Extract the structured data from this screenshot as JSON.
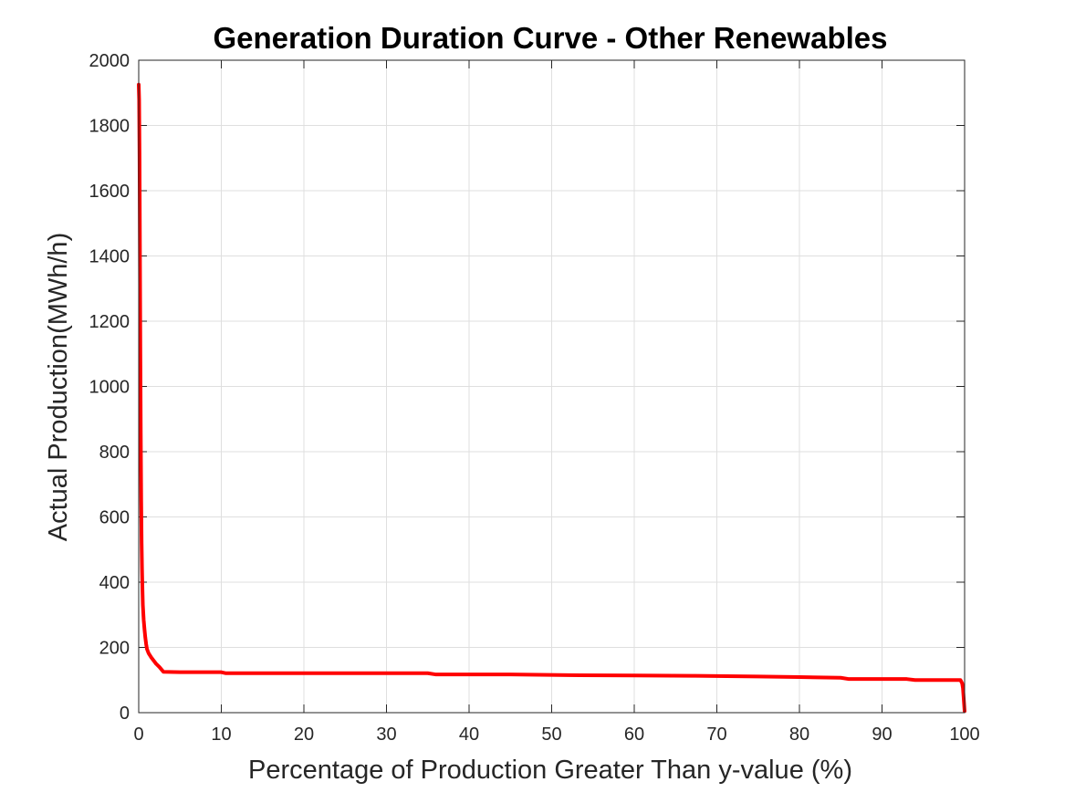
{
  "chart_data": {
    "type": "line",
    "title": "Generation Duration Curve - Other Renewables",
    "xlabel": "Percentage of Production Greater Than y-value (%)",
    "ylabel": "Actual Production(MWh/h)",
    "xlim": [
      0,
      100
    ],
    "ylim": [
      0,
      2000
    ],
    "xticks": [
      0,
      10,
      20,
      30,
      40,
      50,
      60,
      70,
      80,
      90,
      100
    ],
    "yticks": [
      0,
      200,
      400,
      600,
      800,
      1000,
      1200,
      1400,
      1600,
      1800,
      2000
    ],
    "grid": true,
    "series": [
      {
        "color": "#ff0000",
        "x": [
          0,
          0.05,
          0.1,
          0.15,
          0.2,
          0.25,
          0.3,
          0.35,
          0.4,
          0.45,
          0.5,
          0.6,
          0.7,
          0.8,
          0.9,
          1.0,
          1.2,
          1.5,
          1.8,
          2.1,
          2.5,
          3,
          5,
          10,
          10.5,
          20,
          30,
          35,
          36,
          45,
          52,
          60,
          67,
          75,
          80,
          85,
          86,
          90,
          93,
          94,
          97,
          99.5,
          99.7,
          99.8,
          99.9,
          100
        ],
        "y": [
          1925,
          1880,
          1700,
          1400,
          1100,
          850,
          650,
          520,
          440,
          380,
          330,
          285,
          255,
          230,
          210,
          195,
          182,
          170,
          160,
          150,
          140,
          125,
          124,
          124,
          121,
          121,
          121,
          121,
          117,
          117,
          115,
          114,
          113,
          111,
          109,
          107,
          103,
          103,
          103,
          100,
          100,
          100,
          90,
          75,
          40,
          5
        ]
      }
    ]
  },
  "colors": {
    "line": "#ff0000",
    "axes": "#262626",
    "grid": "#dfdfdf",
    "background": "#ffffff"
  }
}
